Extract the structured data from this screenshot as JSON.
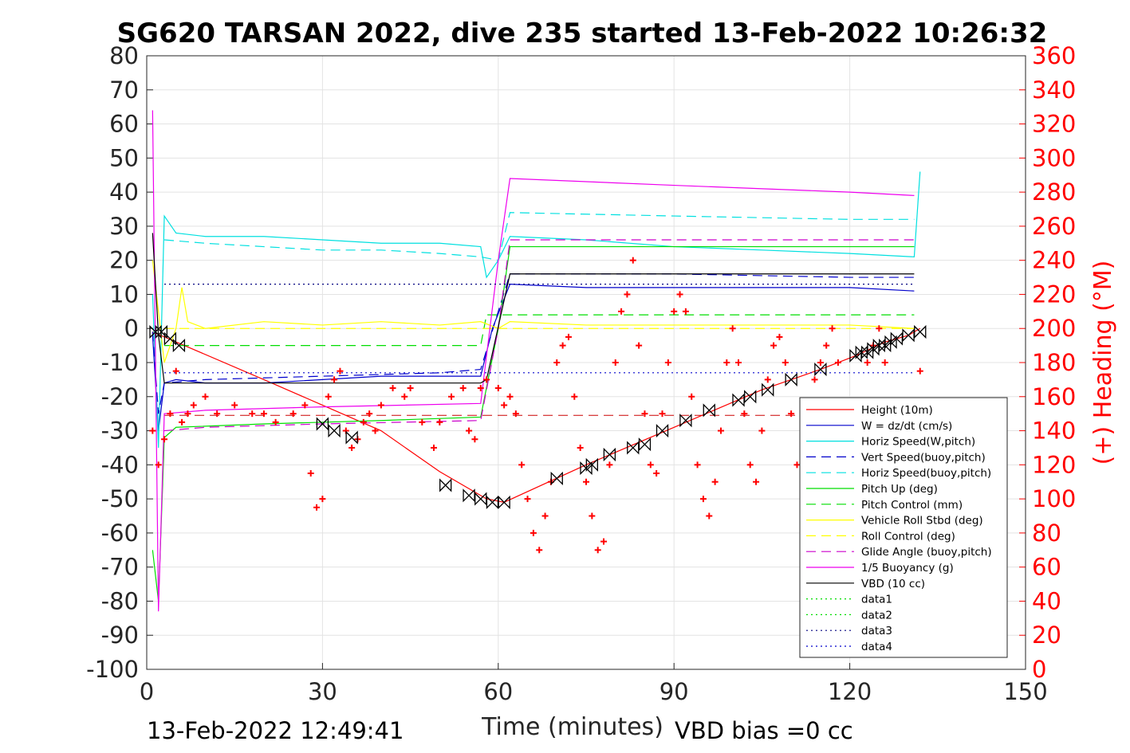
{
  "chart_data": {
    "type": "line",
    "title": "SG620 TARSAN 2022, dive 235 started 13-Feb-2022 10:26:32",
    "xlabel": "Time (minutes)",
    "ylabel_right": "(+) Heading (°M)",
    "xlim": [
      0,
      150
    ],
    "ylim_left": [
      -100,
      80
    ],
    "ylim_right": [
      0,
      360
    ],
    "x_ticks": [
      "0",
      "30",
      "60",
      "90",
      "120",
      "150"
    ],
    "y_ticks_left": [
      "-100",
      "-90",
      "-80",
      "-70",
      "-60",
      "-50",
      "-40",
      "-30",
      "-20",
      "-10",
      "0",
      "10",
      "20",
      "30",
      "40",
      "50",
      "60",
      "70",
      "80"
    ],
    "y_ticks_right": [
      "0",
      "20",
      "40",
      "60",
      "80",
      "100",
      "120",
      "140",
      "160",
      "180",
      "200",
      "220",
      "240",
      "260",
      "280",
      "300",
      "320",
      "340",
      "360"
    ],
    "grid": true,
    "legend_position": "bottom-right",
    "footer_left": "13-Feb-2022 12:49:41",
    "footer_right": "VBD bias =0 cc",
    "series": [
      {
        "name": "Height (10m)",
        "color": "#ff0000",
        "style": "solid",
        "x": [
          1,
          20,
          40,
          50,
          55,
          58,
          61,
          75,
          90,
          105,
          115,
          121,
          126,
          130,
          132
        ],
        "y": [
          -1,
          -15,
          -30,
          -42,
          -47,
          -50,
          -51,
          -40,
          -29,
          -18,
          -12,
          -8,
          -4,
          -2,
          0
        ]
      },
      {
        "name": "W = dz/dt (cm/s)",
        "color": "#0000cc",
        "style": "solid",
        "x": [
          1,
          2,
          3,
          5,
          10,
          20,
          30,
          40,
          50,
          57,
          59,
          62,
          75,
          90,
          105,
          120,
          131
        ],
        "y": [
          -2,
          -30,
          -16,
          -15,
          -16,
          -16,
          -15,
          -14,
          -14,
          -14,
          0,
          13,
          12,
          12,
          12,
          12,
          11
        ]
      },
      {
        "name": "Horiz Speed(W,pitch)",
        "color": "#00e0e0",
        "style": "solid",
        "x": [
          1,
          2,
          3,
          5,
          10,
          20,
          30,
          40,
          50,
          57,
          58,
          60,
          62,
          75,
          90,
          105,
          120,
          131,
          132
        ],
        "y": [
          10,
          -35,
          33,
          28,
          27,
          27,
          26,
          25,
          25,
          24,
          15,
          20,
          27,
          26,
          24,
          23,
          22,
          21,
          46
        ]
      },
      {
        "name": "Vert Speed(buoy,pitch)",
        "color": "#0000cc",
        "style": "dash",
        "x": [
          1,
          2,
          3,
          10,
          30,
          50,
          57,
          60,
          62,
          90,
          120,
          131
        ],
        "y": [
          -1,
          -25,
          -16,
          -15,
          -14,
          -13,
          -12,
          5,
          16,
          16,
          15,
          15
        ]
      },
      {
        "name": "Horiz Speed(buoy,pitch)",
        "color": "#00e0e0",
        "style": "dash",
        "x": [
          3,
          10,
          20,
          30,
          40,
          50,
          57,
          60,
          62,
          90,
          120,
          131
        ],
        "y": [
          26,
          25,
          24,
          23,
          23,
          22,
          21,
          20,
          34,
          33,
          32,
          32
        ]
      },
      {
        "name": "Pitch Up (deg)",
        "color": "#00dd00",
        "style": "solid",
        "x": [
          1,
          2,
          3,
          5,
          20,
          40,
          57,
          60,
          62,
          90,
          120,
          131
        ],
        "y": [
          -65,
          -80,
          -32,
          -29,
          -28,
          -27,
          -26,
          0,
          24,
          24,
          24,
          24
        ]
      },
      {
        "name": "Pitch Control (mm)",
        "color": "#00dd00",
        "style": "dash",
        "x": [
          3,
          57,
          58,
          131
        ],
        "y": [
          -5,
          -5,
          4,
          4
        ]
      },
      {
        "name": "Vehicle Roll Stbd (deg)",
        "color": "#ffff00",
        "style": "solid",
        "x": [
          1,
          3,
          5,
          6,
          7,
          10,
          20,
          30,
          40,
          50,
          57,
          60,
          62,
          75,
          90,
          105,
          120,
          131
        ],
        "y": [
          20,
          -10,
          0,
          12,
          2,
          0,
          2,
          1,
          2,
          1,
          2,
          0,
          2,
          1,
          1,
          1,
          1,
          0
        ]
      },
      {
        "name": "Roll Control (deg)",
        "color": "#ffff00",
        "style": "dash",
        "x": [
          3,
          131
        ],
        "y": [
          0,
          0
        ]
      },
      {
        "name": "Glide Angle (buoy,pitch)",
        "color": "#cc00cc",
        "style": "dash",
        "x": [
          3,
          10,
          30,
          57,
          60,
          62,
          90,
          120,
          131
        ],
        "y": [
          -30,
          -29,
          -28,
          -27,
          0,
          26,
          26,
          26,
          26
        ]
      },
      {
        "name": "1/5 Buoyancy (g)",
        "color": "#ee00ee",
        "style": "solid",
        "x": [
          1,
          2,
          3,
          10,
          30,
          57,
          60,
          62,
          90,
          120,
          131
        ],
        "y": [
          64,
          -83,
          -25,
          -24,
          -23,
          -22,
          20,
          44,
          42,
          40,
          39
        ]
      },
      {
        "name": "VBD (10 cc)",
        "color": "#000000",
        "style": "solid",
        "x": [
          1,
          2,
          3,
          57,
          58,
          62,
          131
        ],
        "y": [
          28,
          -2,
          -16,
          -16,
          -15,
          16,
          16
        ]
      },
      {
        "name": "data1",
        "color": "#00dd00",
        "style": "dot",
        "x": [
          0,
          150
        ],
        "y": [
          null,
          null
        ]
      },
      {
        "name": "data2",
        "color": "#00dd00",
        "style": "dot",
        "x": [
          0,
          150
        ],
        "y": [
          null,
          null
        ]
      },
      {
        "name": "data3",
        "color": "#000080",
        "style": "dot",
        "x": [
          3,
          131
        ],
        "y": [
          13,
          13
        ]
      },
      {
        "name": "data4",
        "color": "#0000cc",
        "style": "dot",
        "x": [
          3,
          131
        ],
        "y": [
          -13,
          -13
        ]
      }
    ],
    "extra_lines": [
      {
        "color": "#cc0000",
        "style": "dash",
        "x": [
          3,
          131
        ],
        "y": [
          -25.5,
          -25.5
        ]
      }
    ],
    "markers": {
      "color": "#000000",
      "shape": "bowtie",
      "x": [
        1.5,
        2.5,
        4,
        5.5,
        30,
        32,
        35,
        51,
        55,
        57,
        59,
        61,
        70,
        75,
        76,
        79,
        83,
        85,
        88,
        92,
        96,
        101,
        103,
        106,
        110,
        115,
        121,
        122,
        123,
        124,
        125,
        126,
        127,
        128,
        130,
        132
      ],
      "y": [
        -1,
        -1,
        -3,
        -5,
        -28,
        -30,
        -32,
        -46,
        -49,
        -50,
        -51,
        -51,
        -44,
        -41,
        -40,
        -37,
        -35,
        -34,
        -30,
        -27,
        -24,
        -21,
        -20,
        -18,
        -15,
        -12,
        -8,
        -7,
        -7,
        -6,
        -5,
        -5,
        -4,
        -3,
        -2,
        -1
      ]
    },
    "heading": {
      "color": "#ff0000",
      "marker": "+",
      "x": [
        1,
        2,
        3,
        4,
        5,
        6,
        7,
        8,
        10,
        12,
        15,
        18,
        20,
        22,
        25,
        27,
        28,
        29,
        30,
        31,
        32,
        33,
        34,
        35,
        36,
        37,
        38,
        39,
        40,
        42,
        44,
        45,
        47,
        49,
        50,
        52,
        54,
        55,
        56,
        57,
        58,
        60,
        61,
        62,
        63,
        64,
        65,
        66,
        67,
        68,
        69,
        70,
        71,
        72,
        73,
        74,
        75,
        76,
        77,
        78,
        79,
        80,
        81,
        82,
        83,
        84,
        85,
        86,
        87,
        88,
        89,
        90,
        91,
        92,
        93,
        94,
        95,
        96,
        97,
        98,
        99,
        100,
        101,
        102,
        103,
        104,
        105,
        106,
        107,
        108,
        109,
        110,
        111,
        112,
        113,
        114,
        115,
        116,
        117,
        118,
        119,
        120,
        121,
        122,
        123,
        124,
        125,
        126,
        127,
        128,
        129,
        130,
        131,
        132
      ],
      "y": [
        140,
        120,
        135,
        150,
        175,
        145,
        150,
        155,
        160,
        150,
        155,
        150,
        150,
        145,
        150,
        155,
        115,
        95,
        100,
        160,
        170,
        175,
        140,
        130,
        135,
        145,
        150,
        140,
        155,
        165,
        160,
        165,
        145,
        130,
        145,
        160,
        165,
        140,
        135,
        165,
        170,
        165,
        155,
        160,
        150,
        120,
        100,
        80,
        70,
        90,
        110,
        180,
        190,
        195,
        160,
        130,
        110,
        90,
        70,
        75,
        120,
        180,
        210,
        220,
        240,
        190,
        150,
        120,
        115,
        150,
        180,
        210,
        220,
        210,
        160,
        120,
        100,
        90,
        110,
        140,
        180,
        200,
        180,
        150,
        120,
        110,
        140,
        170,
        190,
        195,
        180,
        150,
        120,
        115,
        140,
        170,
        180,
        190,
        200,
        180,
        150,
        120,
        110,
        150,
        180,
        190,
        200,
        180,
        150,
        120,
        115,
        140,
        155,
        175
      ]
    }
  }
}
